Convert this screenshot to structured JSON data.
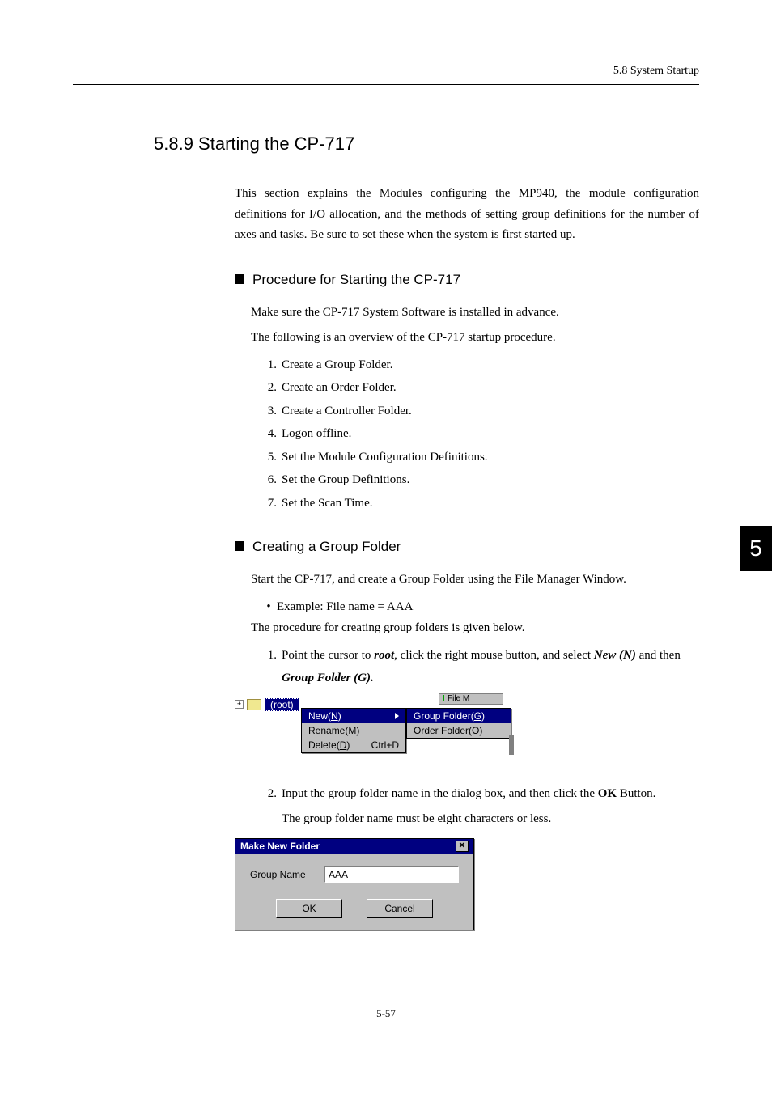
{
  "header": {
    "breadcrumb": "5.8  System Startup"
  },
  "section": {
    "number_title": "5.8.9  Starting the CP-717",
    "intro": "This section explains the Modules configuring the MP940, the module configuration definitions for I/O allocation, and the methods of setting group definitions for the number of axes and tasks. Be sure to set these when the system is first started up."
  },
  "sub1": {
    "title": "Procedure for Starting the CP-717",
    "p1": "Make sure the CP-717 System Software is installed in advance.",
    "p2": "The following is an overview of the CP-717 startup procedure.",
    "steps": [
      "Create a Group Folder.",
      "Create an Order Folder.",
      "Create a Controller Folder.",
      "Logon offline.",
      "Set the Module Configuration Definitions.",
      "Set the Group Definitions.",
      "Set the Scan Time."
    ]
  },
  "sub2": {
    "title": "Creating a Group Folder",
    "p1": "Start the CP-717, and create a Group Folder using the File Manager Window.",
    "bullet_label": "Example:  File name = AAA",
    "p2": "The procedure for creating group folders is given below.",
    "step1_pre": "Point the cursor to ",
    "step1_root": "root",
    "step1_mid": ", click the right mouse button, and select ",
    "step1_new": "New (N)",
    "step1_mid2": " and then ",
    "step1_gf": "Group Folder (G).",
    "step2_pre": "Input the group folder name in the dialog box, and then click the ",
    "step2_ok": "OK",
    "step2_post": " Button.",
    "step2_note": "The group folder name must be eight characters or less."
  },
  "ctx": {
    "root_label": "(root)",
    "file_tab": "File M",
    "m1_new": "New(N)",
    "m1_rename": "Rename(M)",
    "m1_delete": "Delete(D)",
    "m1_delete_accel": "Ctrl+D",
    "m2_group": "Group Folder(G)",
    "m2_order": "Order Folder(O)"
  },
  "dialog": {
    "title": "Make New Folder",
    "label": "Group Name",
    "value": "AAA",
    "ok": "OK",
    "cancel": "Cancel"
  },
  "chapter_tab": "5",
  "page_number": "5-57",
  "colors": {
    "win_bg": "#c0c0c0",
    "highlight": "#000080",
    "folder": "#f0e890"
  }
}
